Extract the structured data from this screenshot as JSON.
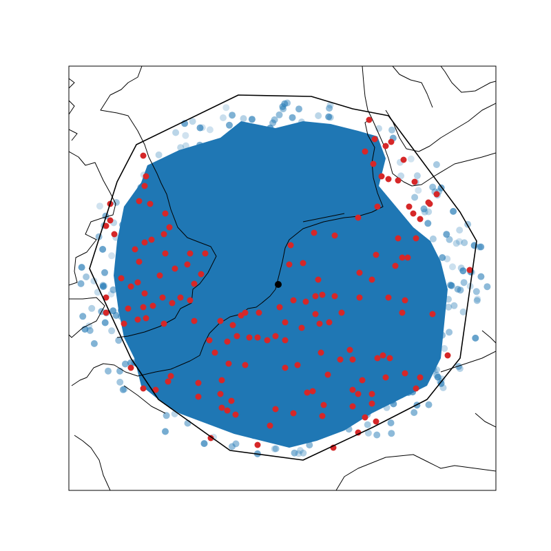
{
  "map": {
    "coverage_color": "#1f77b4",
    "coverage_scatter_color": "#1f77b4",
    "station_color": "#d62728",
    "center_marker_color": "#000000",
    "hull_color": "#000000",
    "coastline_color": "#000000"
  }
}
